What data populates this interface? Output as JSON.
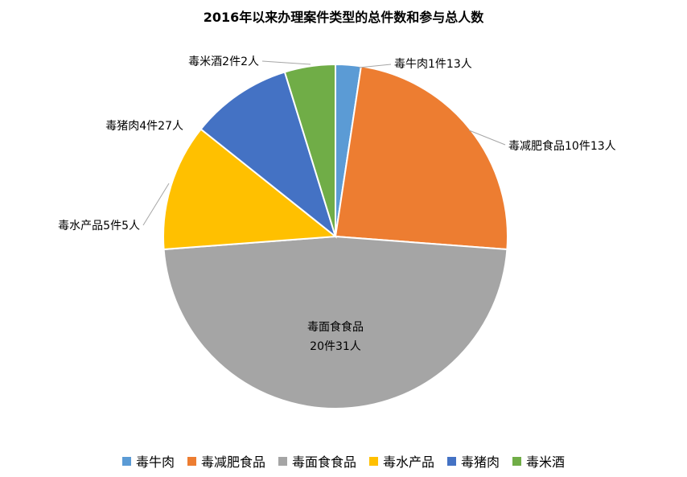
{
  "chart_data": {
    "type": "pie",
    "title": "2016年以来办理案件类型的总件数和参与总人数",
    "slices": [
      {
        "name": "毒牛肉",
        "value": 1,
        "label": "毒牛肉1件13人",
        "color": "#5B9BD5"
      },
      {
        "name": "毒减肥食品",
        "value": 10,
        "label": "毒减肥食品10件13人",
        "color": "#ED7D31"
      },
      {
        "name": "毒面食食品",
        "value": 20,
        "label_lines": [
          "毒面食食品",
          "20件31人"
        ],
        "color": "#A5A5A5"
      },
      {
        "name": "毒水产品",
        "value": 5,
        "label": "毒水产品5件5人",
        "color": "#FFC000"
      },
      {
        "name": "毒猪肉",
        "value": 4,
        "label": "毒猪肉4件27人",
        "color": "#4472C4"
      },
      {
        "name": "毒米酒",
        "value": 2,
        "label": "毒米酒2件2人",
        "color": "#70AD47"
      }
    ],
    "legend_position": "bottom"
  }
}
